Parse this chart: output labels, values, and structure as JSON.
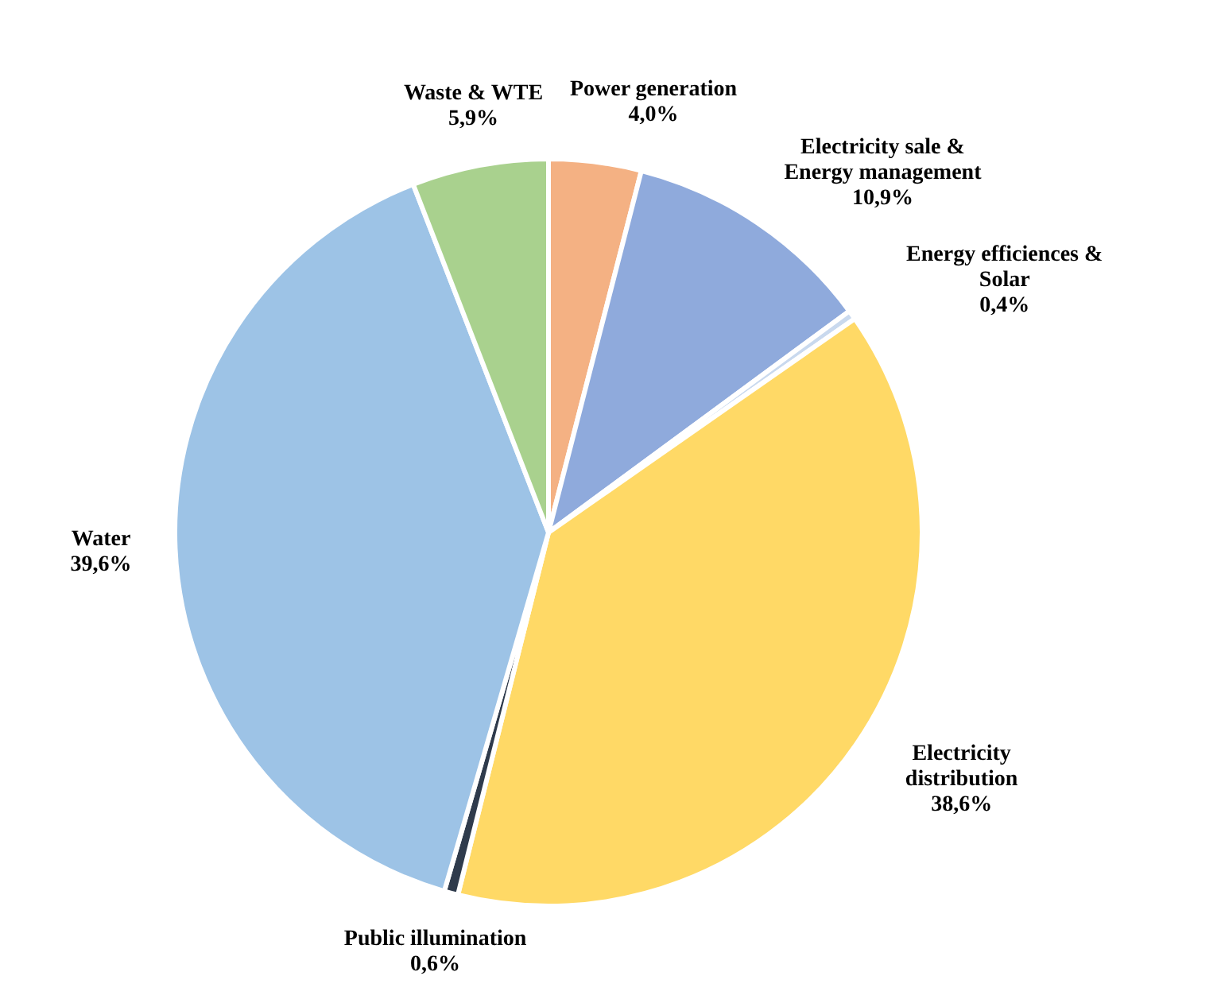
{
  "chart_data": {
    "type": "pie",
    "categories": [
      "Power generation",
      "Electricity sale & Energy management",
      "Energy efficiences & Solar",
      "Electricity distribution",
      "Public illumination",
      "Water",
      "Waste & WTE"
    ],
    "values": [
      4.0,
      10.9,
      0.4,
      38.6,
      0.6,
      39.6,
      5.9
    ],
    "value_labels": [
      "4,0%",
      "10,9%",
      "0,4%",
      "38,6%",
      "0,6%",
      "39,6%",
      "5,9%"
    ],
    "colors": [
      "#f4b183",
      "#8faadc",
      "#c9d9ee",
      "#ffd966",
      "#2f3b4c",
      "#9dc3e6",
      "#a9d18e"
    ]
  }
}
